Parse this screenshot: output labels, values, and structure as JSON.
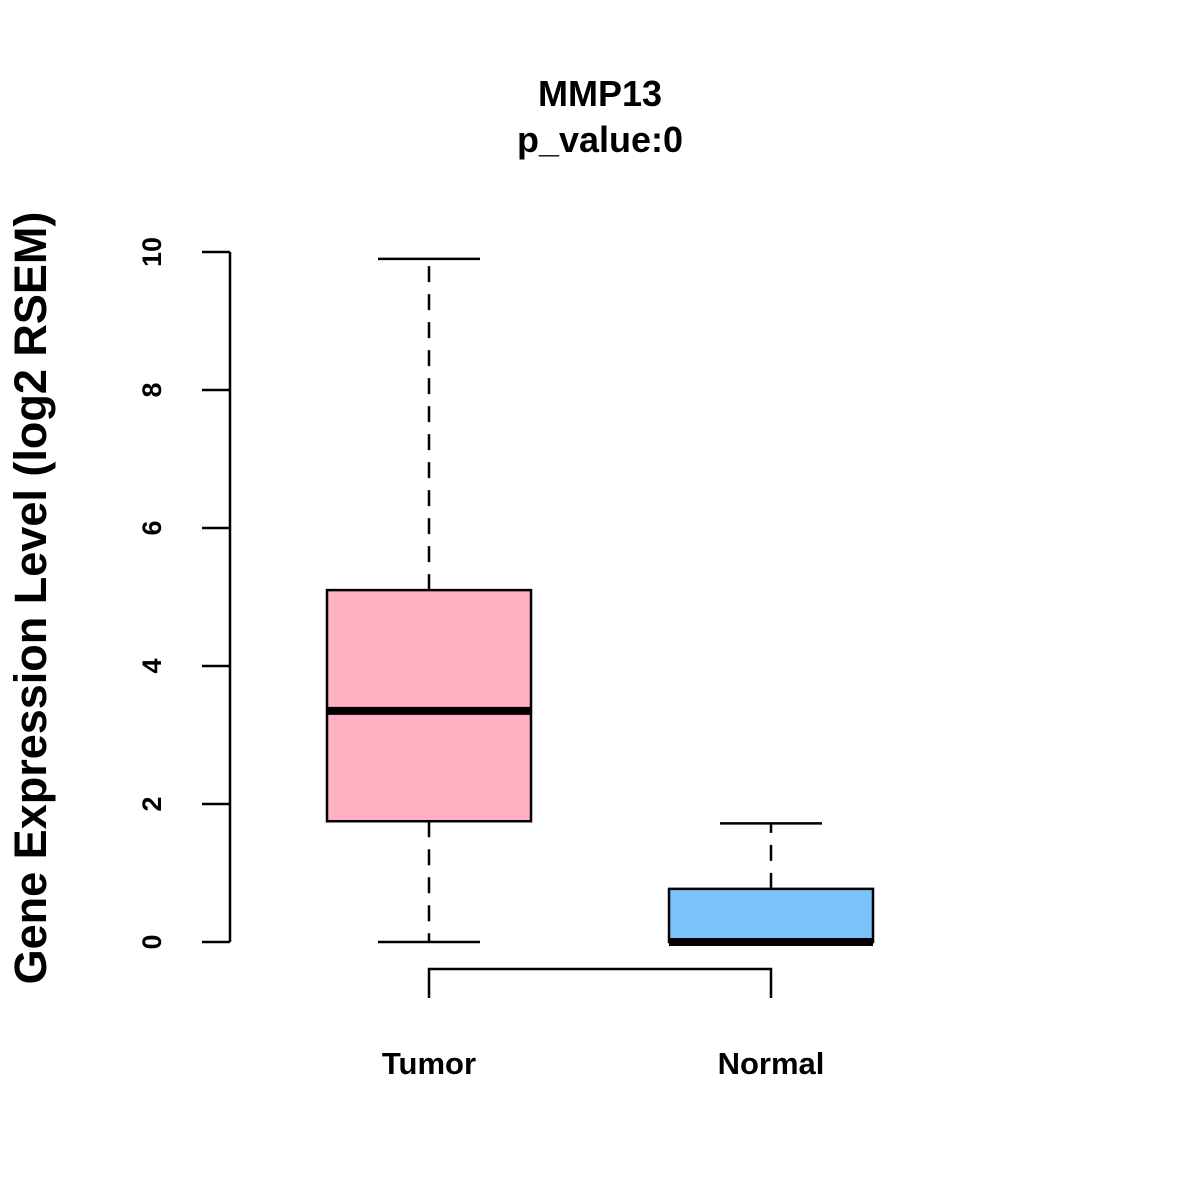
{
  "chart_data": {
    "type": "boxplot",
    "title": "MMP13",
    "subtitle": "p_value:0",
    "xlabel": "",
    "ylabel": "Gene Expression Level (log2 RSEM)",
    "ylim": [
      0,
      10
    ],
    "yticks": [
      "0",
      "2",
      "4",
      "6",
      "8",
      "10"
    ],
    "grid": false,
    "categories": [
      "Tumor",
      "Normal"
    ],
    "series": [
      {
        "name": "Tumor",
        "min": 0,
        "q1": 1.75,
        "median": 3.35,
        "q3": 5.1,
        "max": 9.9,
        "color": "#FFB1C3"
      },
      {
        "name": "Normal",
        "min": 0,
        "q1": 0,
        "median": 0,
        "q3": 0.77,
        "max": 1.72,
        "color": "#79C3F9"
      }
    ],
    "comparison_bracket": [
      "Tumor",
      "Normal"
    ]
  }
}
